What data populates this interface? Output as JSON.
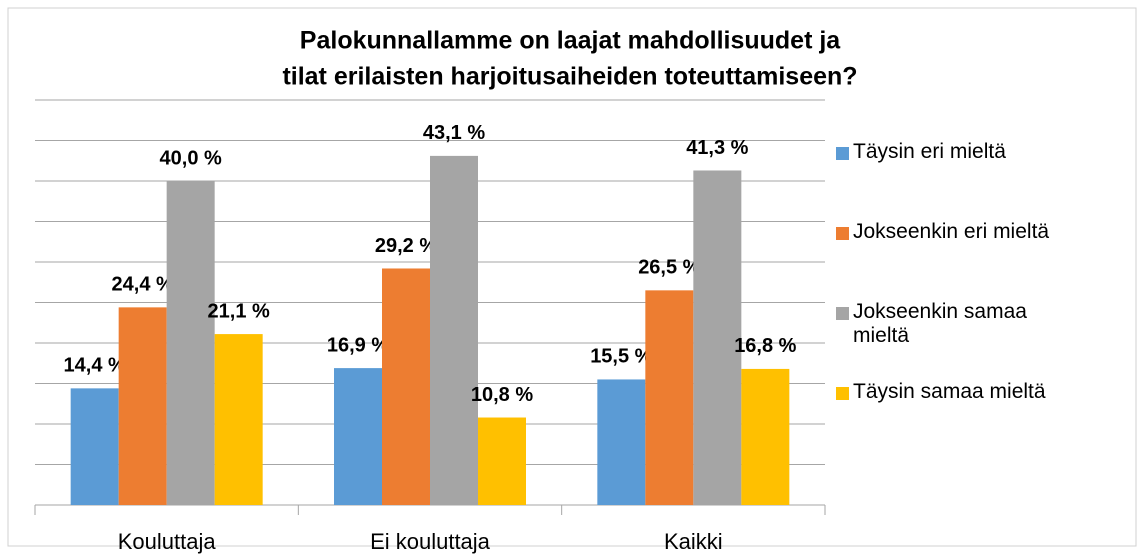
{
  "chart_data": {
    "type": "bar",
    "title": [
      "Palokunnallamme on laajat mahdollisuudet ja",
      "tilat erilaisten harjoitusaiheiden toteuttamiseen?"
    ],
    "categories": [
      "Kouluttaja",
      "Ei kouluttaja",
      "Kaikki"
    ],
    "series": [
      {
        "name": "Täysin eri mieltä",
        "color": "#5b9bd5",
        "values": [
          14.4,
          16.9,
          15.5
        ],
        "value_labels": [
          "14,4 %",
          "16,9 %",
          "15,5 %"
        ]
      },
      {
        "name": "Jokseenkin eri mieltä",
        "color": "#ed7d31",
        "values": [
          24.4,
          29.2,
          26.5
        ],
        "value_labels": [
          "24,4 %",
          "29,2 %",
          "26,5 %"
        ]
      },
      {
        "name": "Jokseenkin samaa mieltä",
        "color": "#a5a5a5",
        "values": [
          40.0,
          43.1,
          41.3
        ],
        "value_labels": [
          "40,0 %",
          "43,1 %",
          "41,3 %"
        ]
      },
      {
        "name": "Täysin samaa mieltä",
        "color": "#ffc000",
        "values": [
          21.1,
          10.8,
          16.8
        ],
        "value_labels": [
          "21,1 %",
          "10,8 %",
          "16,8 %"
        ]
      }
    ],
    "ylim": [
      0,
      50
    ],
    "yticks": [
      0,
      5,
      10,
      15,
      20,
      25,
      30,
      35,
      40,
      45,
      50
    ],
    "grid": true,
    "legend": "right"
  }
}
